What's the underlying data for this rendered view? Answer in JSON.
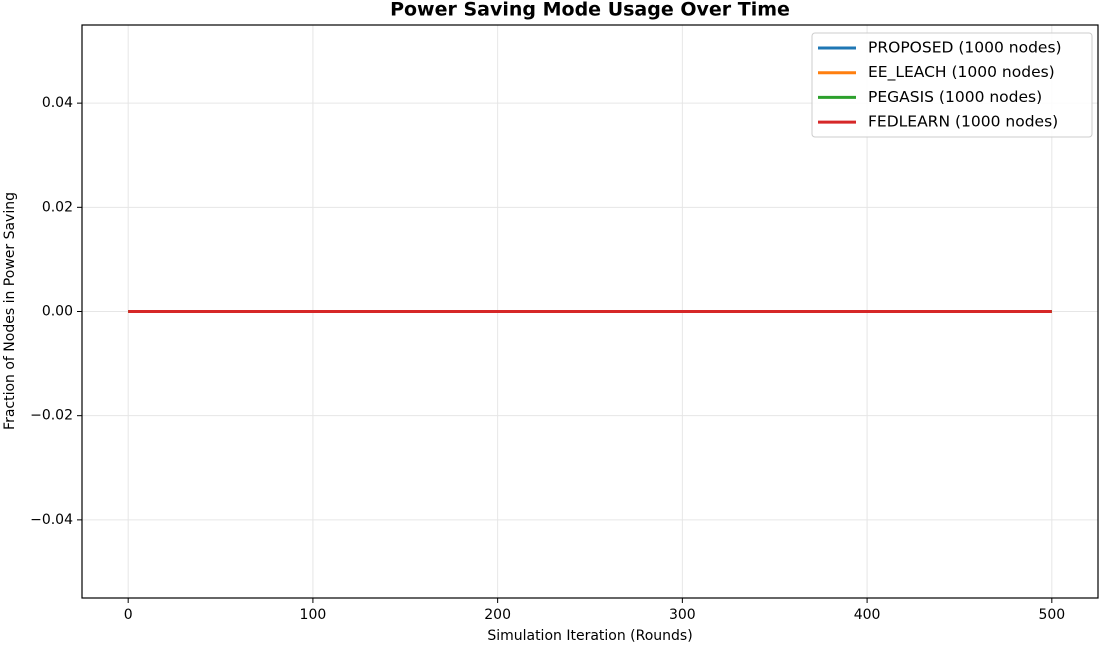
{
  "chart_data": {
    "type": "line",
    "title": "Power Saving Mode Usage Over Time",
    "xlabel": "Simulation Iteration (Rounds)",
    "ylabel": "Fraction of Nodes in Power Saving",
    "x": [
      0,
      500
    ],
    "series": [
      {
        "name": "PROPOSED (1000 nodes)",
        "color": "#1f77b4",
        "values": [
          0,
          0
        ]
      },
      {
        "name": "EE_LEACH (1000 nodes)",
        "color": "#ff7f0e",
        "values": [
          0,
          0
        ]
      },
      {
        "name": "PEGASIS (1000 nodes)",
        "color": "#2ca02c",
        "values": [
          0,
          0
        ]
      },
      {
        "name": "FEDLEARN (1000 nodes)",
        "color": "#d62728",
        "values": [
          0,
          0
        ]
      }
    ],
    "xlim": [
      -25,
      525
    ],
    "xticks": [
      0,
      100,
      200,
      300,
      400,
      500
    ],
    "ylim": [
      -0.055,
      0.055
    ],
    "yticks": [
      {
        "value": -0.04,
        "label": "−0.04"
      },
      {
        "value": -0.02,
        "label": "−0.02"
      },
      {
        "value": 0,
        "label": "0.00"
      },
      0.02,
      0.04
    ],
    "grid": true,
    "legend": "upper right"
  }
}
